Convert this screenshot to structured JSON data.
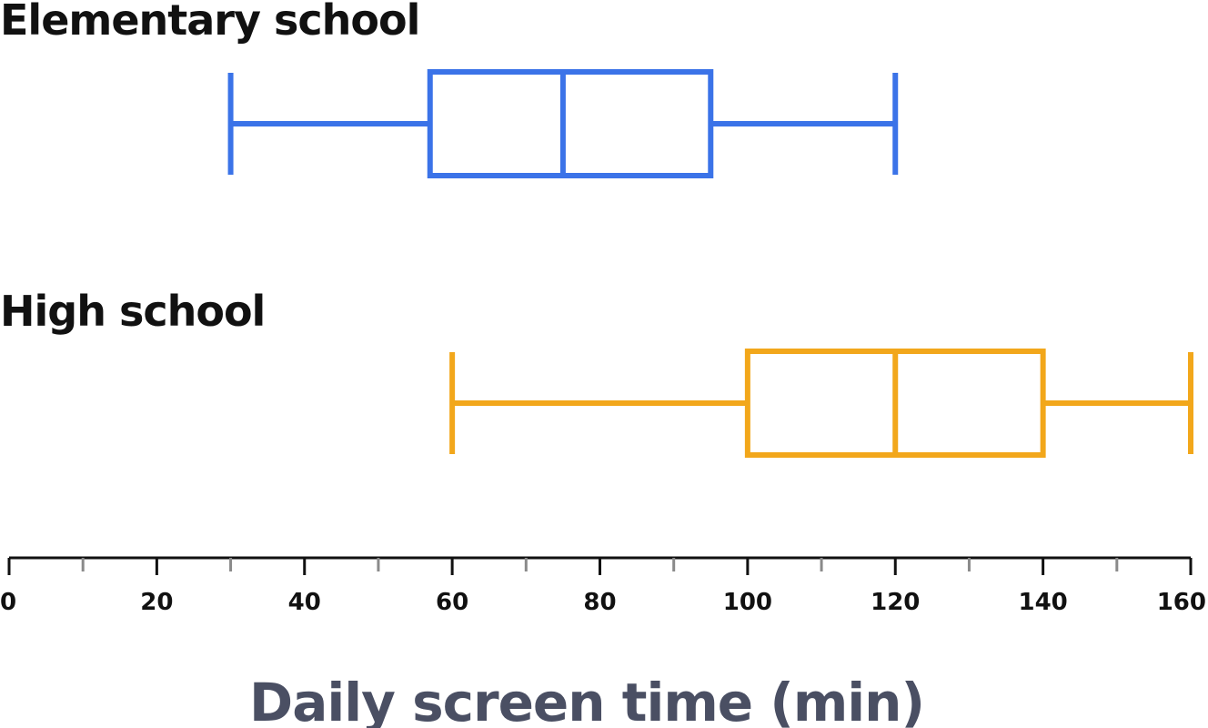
{
  "chart_data": {
    "type": "boxplot",
    "orientation": "horizontal",
    "xlabel": "Daily screen time (min)",
    "xlim": [
      0,
      160
    ],
    "major_ticks": [
      0,
      20,
      40,
      60,
      80,
      100,
      120,
      140,
      160
    ],
    "minor_ticks": [
      10,
      30,
      50,
      70,
      90,
      110,
      130,
      150
    ],
    "tick_labels": [
      "0",
      "20",
      "40",
      "60",
      "80",
      "100",
      "120",
      "140",
      "160"
    ],
    "grid": false,
    "series": [
      {
        "name": "Elementary school",
        "color": "#3b73e8",
        "min": 30,
        "q1": 57,
        "median": 75,
        "q3": 95,
        "max": 120
      },
      {
        "name": "High school",
        "color": "#f2a71b",
        "min": 60,
        "q1": 100,
        "median": 120,
        "q3": 140,
        "max": 160
      }
    ]
  }
}
